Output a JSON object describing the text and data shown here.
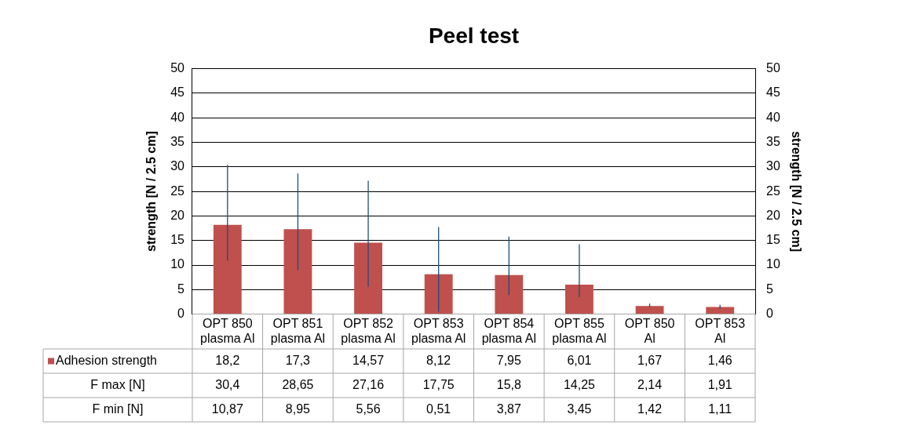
{
  "chart_data": {
    "type": "bar",
    "title": "Peel test",
    "ylabel": "strength [N / 2.5 cm]",
    "y2label": "strength [N / 2.5 cm]",
    "categories": [
      "OPT 850 plasma Al",
      "OPT 851 plasma Al",
      "OPT 852 plasma Al",
      "OPT 853 plasma Al",
      "OPT 854 plasma Al",
      "OPT 855 plasma Al",
      "OPT 850 Al",
      "OPT 853 Al"
    ],
    "series": [
      {
        "name": "Adhesion strength",
        "color": "#c0504d",
        "values": [
          18.2,
          17.3,
          14.57,
          8.12,
          7.95,
          6.01,
          1.67,
          1.46
        ],
        "value_labels": [
          "18,2",
          "17,3",
          "14,57",
          "8,12",
          "7,95",
          "6,01",
          "1,67",
          "1,46"
        ],
        "errors": [
          [
            10.87,
            30.4
          ],
          [
            8.95,
            28.65
          ],
          [
            5.56,
            27.16
          ],
          [
            0.51,
            17.75
          ],
          [
            3.87,
            15.8
          ],
          [
            3.45,
            14.25
          ],
          [
            1.42,
            2.14
          ],
          [
            1.11,
            1.91
          ]
        ]
      }
    ],
    "annotations": [
      "F max [N]",
      "F min [N]",
      "30,4",
      "28,65",
      "27,16",
      "17,75",
      "15,8",
      "14,25",
      "2,14",
      "1,91",
      "10,87",
      "8,95",
      "5,56",
      "0,51",
      "3,87",
      "3,45",
      "1,42",
      "1,11"
    ],
    "ylim": [
      0,
      50
    ],
    "yticks": [
      0,
      5,
      10,
      15,
      20,
      25,
      30,
      35,
      40,
      45,
      50
    ],
    "y2lim": [
      0,
      50
    ],
    "y2ticks": [
      0,
      5,
      10,
      15,
      20,
      25,
      30,
      35,
      40,
      45,
      50
    ],
    "grid": "y",
    "legend": "bottom left"
  }
}
